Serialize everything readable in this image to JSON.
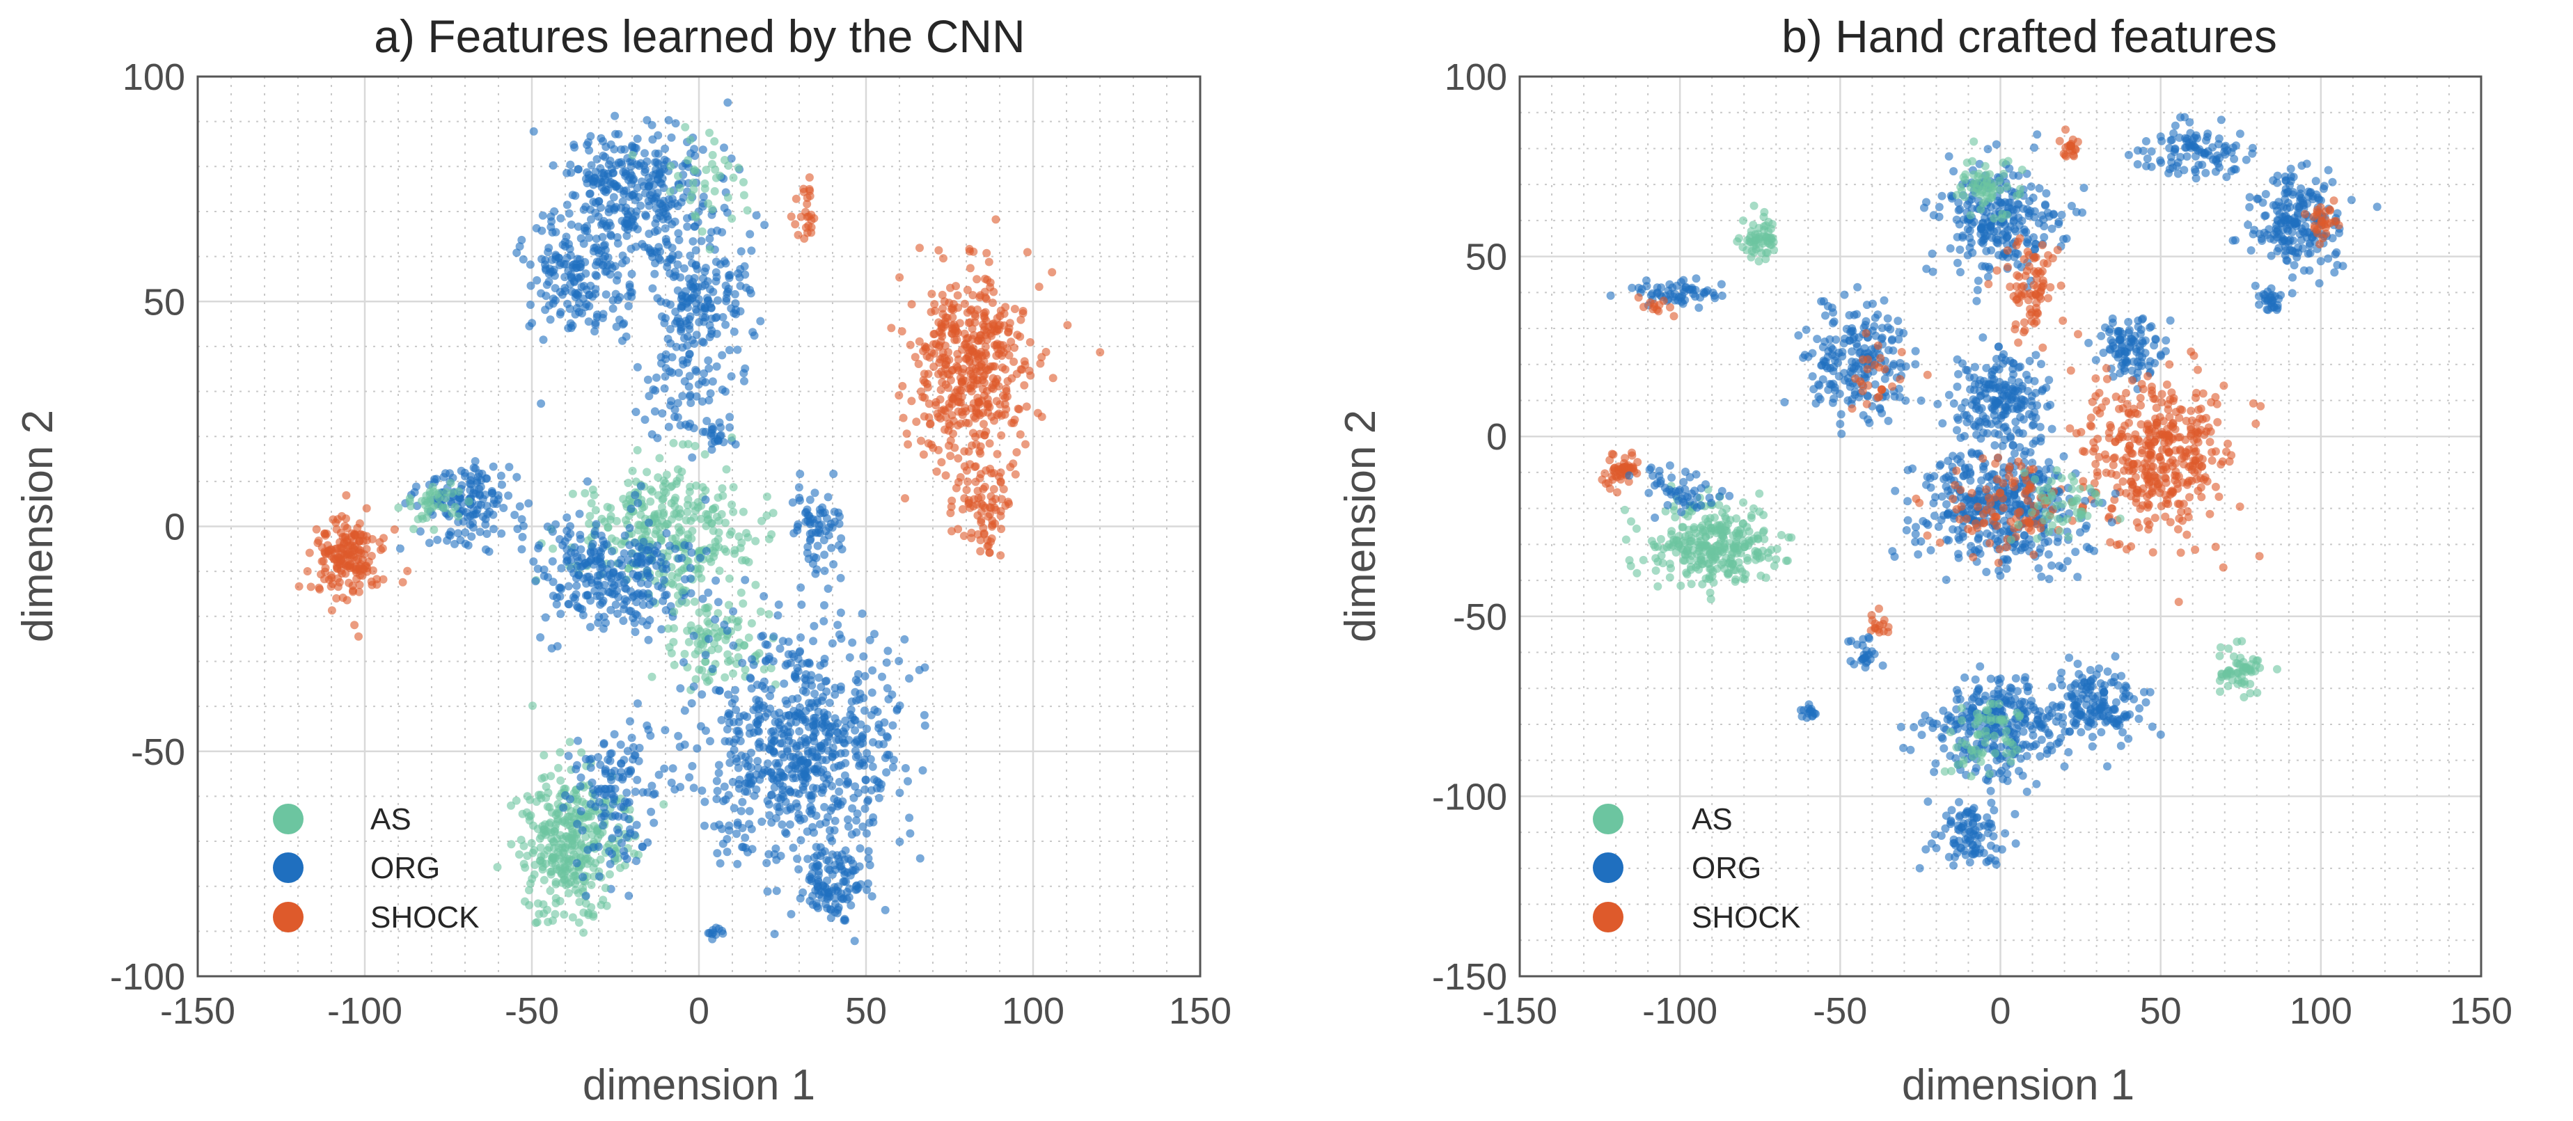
{
  "colors": {
    "AS": "#6cc5a0",
    "ORG": "#1f6fbf",
    "SHOCK": "#de5a2b"
  },
  "chart_data": [
    {
      "type": "scatter",
      "title": "a) Features learned by the CNN",
      "xlabel": "dimension 1",
      "ylabel": "dimension 2",
      "xlim": [
        -150,
        150
      ],
      "ylim": [
        -100,
        100
      ],
      "xticks": [
        -150,
        -100,
        -50,
        0,
        50,
        100,
        150
      ],
      "yticks": [
        -100,
        -50,
        0,
        50,
        100
      ],
      "grid": true,
      "legend": {
        "position": "bottom-left",
        "entries": [
          "AS",
          "ORG",
          "SHOCK"
        ]
      },
      "clusters": [
        {
          "name": "ORG",
          "cx": -18,
          "cy": 75,
          "rx": 20,
          "ry": 12,
          "n": 300
        },
        {
          "name": "ORG",
          "cx": -35,
          "cy": 55,
          "rx": 15,
          "ry": 12,
          "n": 200
        },
        {
          "name": "ORG",
          "cx": 0,
          "cy": 50,
          "rx": 15,
          "ry": 15,
          "n": 200
        },
        {
          "name": "ORG",
          "cx": -5,
          "cy": 30,
          "rx": 12,
          "ry": 10,
          "n": 60
        },
        {
          "name": "AS",
          "cx": 0,
          "cy": 75,
          "rx": 15,
          "ry": 12,
          "n": 40
        },
        {
          "name": "SHOCK",
          "cx": 32,
          "cy": 70,
          "rx": 3,
          "ry": 6,
          "n": 25
        },
        {
          "name": "SHOCK",
          "cx": 82,
          "cy": 35,
          "rx": 18,
          "ry": 20,
          "n": 450
        },
        {
          "name": "SHOCK",
          "cx": 85,
          "cy": 5,
          "rx": 8,
          "ry": 10,
          "n": 80
        },
        {
          "name": "ORG",
          "cx": 35,
          "cy": 0,
          "rx": 7,
          "ry": 8,
          "n": 70
        },
        {
          "name": "ORG",
          "cx": 5,
          "cy": 20,
          "rx": 3,
          "ry": 3,
          "n": 20
        },
        {
          "name": "SHOCK",
          "cx": -105,
          "cy": -7,
          "rx": 10,
          "ry": 8,
          "n": 180
        },
        {
          "name": "ORG",
          "cx": -70,
          "cy": 5,
          "rx": 15,
          "ry": 8,
          "n": 150
        },
        {
          "name": "AS",
          "cx": -80,
          "cy": 5,
          "rx": 8,
          "ry": 5,
          "n": 40
        },
        {
          "name": "AS",
          "cx": -10,
          "cy": 0,
          "rx": 25,
          "ry": 12,
          "n": 300
        },
        {
          "name": "ORG",
          "cx": -25,
          "cy": -10,
          "rx": 22,
          "ry": 12,
          "n": 280
        },
        {
          "name": "AS",
          "cx": 5,
          "cy": -25,
          "rx": 15,
          "ry": 10,
          "n": 100
        },
        {
          "name": "ORG",
          "cx": 30,
          "cy": -50,
          "rx": 28,
          "ry": 25,
          "n": 700
        },
        {
          "name": "ORG",
          "cx": 40,
          "cy": -80,
          "rx": 10,
          "ry": 8,
          "n": 100
        },
        {
          "name": "AS",
          "cx": -38,
          "cy": -70,
          "rx": 14,
          "ry": 15,
          "n": 350
        },
        {
          "name": "ORG",
          "cx": -25,
          "cy": -60,
          "rx": 12,
          "ry": 15,
          "n": 130
        },
        {
          "name": "ORG",
          "cx": 5,
          "cy": -90,
          "rx": 2,
          "ry": 2,
          "n": 10
        }
      ]
    },
    {
      "type": "scatter",
      "title": "b) Hand crafted features",
      "xlabel": "dimension 1",
      "ylabel": "dimension 2",
      "xlim": [
        -150,
        150
      ],
      "ylim": [
        -150,
        100
      ],
      "xticks": [
        -150,
        -100,
        -50,
        0,
        50,
        100,
        150
      ],
      "yticks": [
        -150,
        -100,
        -50,
        0,
        50,
        100
      ],
      "grid": true,
      "legend": {
        "position": "bottom-left",
        "entries": [
          "AS",
          "ORG",
          "SHOCK"
        ]
      },
      "clusters": [
        {
          "name": "AS",
          "cx": -75,
          "cy": 55,
          "rx": 5,
          "ry": 5,
          "n": 60
        },
        {
          "name": "ORG",
          "cx": -100,
          "cy": 40,
          "rx": 15,
          "ry": 3,
          "n": 60
        },
        {
          "name": "SHOCK",
          "cx": -108,
          "cy": 36,
          "rx": 5,
          "ry": 2,
          "n": 12
        },
        {
          "name": "ORG",
          "cx": -45,
          "cy": 20,
          "rx": 15,
          "ry": 15,
          "n": 200
        },
        {
          "name": "SHOCK",
          "cx": -40,
          "cy": 15,
          "rx": 10,
          "ry": 10,
          "n": 25
        },
        {
          "name": "SHOCK",
          "cx": -118,
          "cy": -10,
          "rx": 5,
          "ry": 4,
          "n": 50
        },
        {
          "name": "AS",
          "cx": -90,
          "cy": -30,
          "rx": 18,
          "ry": 10,
          "n": 300
        },
        {
          "name": "ORG",
          "cx": -100,
          "cy": -15,
          "rx": 10,
          "ry": 5,
          "n": 50
        },
        {
          "name": "ORG",
          "cx": 0,
          "cy": 60,
          "rx": 18,
          "ry": 15,
          "n": 250
        },
        {
          "name": "AS",
          "cx": -5,
          "cy": 70,
          "rx": 8,
          "ry": 8,
          "n": 60
        },
        {
          "name": "SHOCK",
          "cx": 10,
          "cy": 40,
          "rx": 8,
          "ry": 12,
          "n": 80
        },
        {
          "name": "SHOCK",
          "cx": 22,
          "cy": 80,
          "rx": 3,
          "ry": 3,
          "n": 20
        },
        {
          "name": "ORG",
          "cx": 0,
          "cy": 10,
          "rx": 15,
          "ry": 12,
          "n": 200
        },
        {
          "name": "ORG",
          "cx": 40,
          "cy": 25,
          "rx": 10,
          "ry": 8,
          "n": 100
        },
        {
          "name": "SHOCK",
          "cx": 50,
          "cy": -5,
          "rx": 20,
          "ry": 20,
          "n": 400
        },
        {
          "name": "ORG",
          "cx": 0,
          "cy": -20,
          "rx": 22,
          "ry": 15,
          "n": 400
        },
        {
          "name": "SHOCK",
          "cx": 0,
          "cy": -20,
          "rx": 20,
          "ry": 12,
          "n": 100
        },
        {
          "name": "AS",
          "cx": 20,
          "cy": -20,
          "rx": 12,
          "ry": 8,
          "n": 50
        },
        {
          "name": "ORG",
          "cx": 60,
          "cy": 80,
          "rx": 15,
          "ry": 8,
          "n": 100
        },
        {
          "name": "ORG",
          "cx": 92,
          "cy": 60,
          "rx": 12,
          "ry": 12,
          "n": 200
        },
        {
          "name": "SHOCK",
          "cx": 100,
          "cy": 60,
          "rx": 4,
          "ry": 5,
          "n": 30
        },
        {
          "name": "ORG",
          "cx": 85,
          "cy": 38,
          "rx": 4,
          "ry": 4,
          "n": 30
        },
        {
          "name": "SHOCK",
          "cx": -38,
          "cy": -52,
          "rx": 3,
          "ry": 3,
          "n": 15
        },
        {
          "name": "ORG",
          "cx": -42,
          "cy": -60,
          "rx": 4,
          "ry": 3,
          "n": 25
        },
        {
          "name": "ORG",
          "cx": -60,
          "cy": -77,
          "rx": 3,
          "ry": 2,
          "n": 15
        },
        {
          "name": "ORG",
          "cx": 0,
          "cy": -80,
          "rx": 20,
          "ry": 12,
          "n": 300
        },
        {
          "name": "ORG",
          "cx": 30,
          "cy": -75,
          "rx": 12,
          "ry": 10,
          "n": 150
        },
        {
          "name": "ORG",
          "cx": -10,
          "cy": -110,
          "rx": 10,
          "ry": 8,
          "n": 100
        },
        {
          "name": "AS",
          "cx": -5,
          "cy": -85,
          "rx": 10,
          "ry": 10,
          "n": 60
        },
        {
          "name": "AS",
          "cx": 75,
          "cy": -65,
          "rx": 8,
          "ry": 7,
          "n": 60
        }
      ]
    }
  ]
}
